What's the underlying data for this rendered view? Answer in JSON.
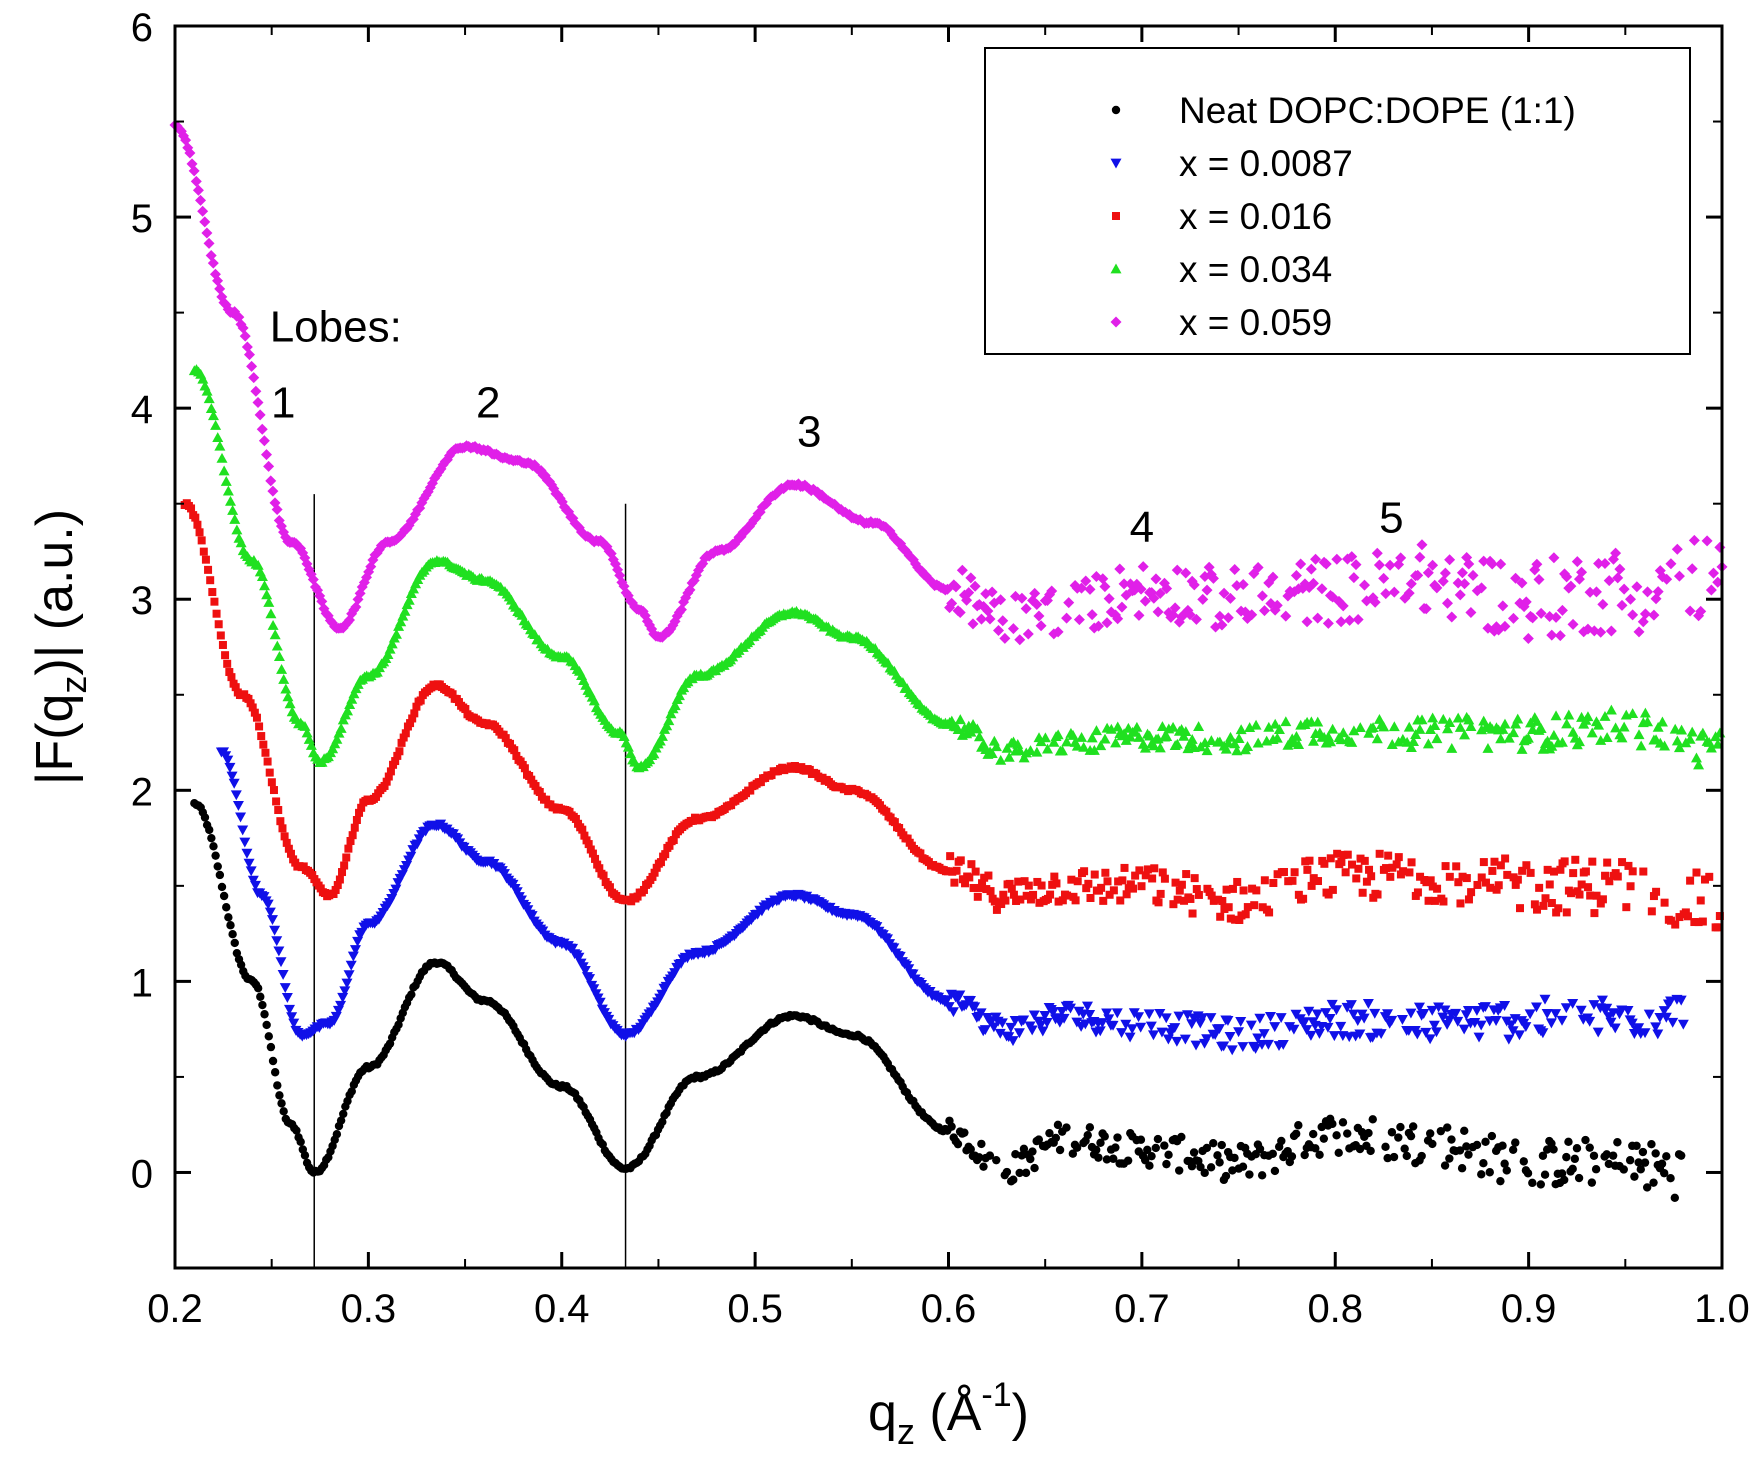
{
  "chart_data": {
    "type": "scatter",
    "title": "",
    "xlabel": "q_z (Å^-1)",
    "xlabel_parts": {
      "main": "q",
      "sub": "z",
      "open": " (Å",
      "sup": "-1",
      "close": ")"
    },
    "ylabel": "|F(q_z)| (a.u.)",
    "ylabel_parts": {
      "pre": "|F(q",
      "sub": "z",
      "post": ")| (a.u.)"
    },
    "xlim": [
      0.2,
      1.0
    ],
    "ylim": [
      -0.5,
      6
    ],
    "x_ticks": [
      0.2,
      0.3,
      0.4,
      0.5,
      0.6,
      0.7,
      0.8,
      0.9,
      1.0
    ],
    "x_tick_labels": [
      "0.2",
      "0.3",
      "0.4",
      "0.5",
      "0.6",
      "0.7",
      "0.8",
      "0.9",
      "1.0"
    ],
    "y_ticks": [
      0,
      1,
      2,
      3,
      4,
      5,
      6
    ],
    "y_tick_labels": [
      "0",
      "1",
      "2",
      "3",
      "4",
      "5",
      "6"
    ],
    "legend_position": "top-right",
    "vertical_lines": [
      0.272,
      0.433
    ],
    "annotations": [
      {
        "text": "Lobes:",
        "x": 0.25,
        "y": 4.35
      },
      {
        "text": "1",
        "x": 0.256,
        "y": 3.95
      },
      {
        "text": "2",
        "x": 0.362,
        "y": 3.95
      },
      {
        "text": "3",
        "x": 0.528,
        "y": 3.8
      },
      {
        "text": "4",
        "x": 0.7,
        "y": 3.3
      },
      {
        "text": "5",
        "x": 0.829,
        "y": 3.35
      }
    ],
    "series": [
      {
        "name": "Neat DOPC:DOPE (1:1)",
        "color": "#000000",
        "marker": "circle",
        "x_range": [
          0.21,
          0.98
        ],
        "offset": 0.0,
        "amp_scale": 1.0,
        "y_start": 1.93,
        "noise": 0.07,
        "points": [
          [
            0.21,
            1.93
          ],
          [
            0.24,
            1.0
          ],
          [
            0.26,
            0.25
          ],
          [
            0.272,
            0.0
          ],
          [
            0.3,
            0.55
          ],
          [
            0.335,
            1.1
          ],
          [
            0.36,
            0.9
          ],
          [
            0.4,
            0.45
          ],
          [
            0.433,
            0.02
          ],
          [
            0.47,
            0.5
          ],
          [
            0.52,
            0.82
          ],
          [
            0.55,
            0.72
          ],
          [
            0.6,
            0.22
          ],
          [
            0.63,
            0.02
          ],
          [
            0.66,
            0.18
          ],
          [
            0.7,
            0.12
          ],
          [
            0.75,
            0.05
          ],
          [
            0.8,
            0.2
          ],
          [
            0.85,
            0.15
          ],
          [
            0.9,
            0.05
          ],
          [
            0.95,
            0.05
          ],
          [
            0.98,
            0.0
          ]
        ]
      },
      {
        "name": "x = 0.0087",
        "color": "#1010e8",
        "marker": "triangle-down",
        "x_range": [
          0.224,
          0.98
        ],
        "offset": 0.72,
        "amp_scale": 1.0,
        "y_start": 2.2,
        "noise": 0.06,
        "points": [
          [
            0.224,
            2.2
          ],
          [
            0.245,
            1.45
          ],
          [
            0.265,
            0.72
          ],
          [
            0.28,
            0.78
          ],
          [
            0.3,
            1.3
          ],
          [
            0.335,
            1.82
          ],
          [
            0.36,
            1.63
          ],
          [
            0.4,
            1.2
          ],
          [
            0.433,
            0.72
          ],
          [
            0.47,
            1.15
          ],
          [
            0.52,
            1.45
          ],
          [
            0.55,
            1.35
          ],
          [
            0.6,
            0.9
          ],
          [
            0.63,
            0.75
          ],
          [
            0.66,
            0.82
          ],
          [
            0.7,
            0.78
          ],
          [
            0.75,
            0.72
          ],
          [
            0.8,
            0.8
          ],
          [
            0.85,
            0.78
          ],
          [
            0.9,
            0.8
          ],
          [
            0.95,
            0.82
          ],
          [
            0.98,
            0.82
          ]
        ]
      },
      {
        "name": "x = 0.016",
        "color": "#ee1010",
        "marker": "square",
        "x_range": [
          0.205,
          1.0
        ],
        "offset": 1.42,
        "amp_scale": 1.0,
        "y_start": 3.5,
        "noise": 0.08,
        "points": [
          [
            0.205,
            3.5
          ],
          [
            0.235,
            2.5
          ],
          [
            0.265,
            1.6
          ],
          [
            0.28,
            1.45
          ],
          [
            0.3,
            1.95
          ],
          [
            0.335,
            2.55
          ],
          [
            0.36,
            2.35
          ],
          [
            0.4,
            1.9
          ],
          [
            0.433,
            1.42
          ],
          [
            0.47,
            1.85
          ],
          [
            0.52,
            2.12
          ],
          [
            0.55,
            2.0
          ],
          [
            0.6,
            1.58
          ],
          [
            0.63,
            1.45
          ],
          [
            0.66,
            1.5
          ],
          [
            0.7,
            1.5
          ],
          [
            0.75,
            1.42
          ],
          [
            0.8,
            1.55
          ],
          [
            0.85,
            1.55
          ],
          [
            0.9,
            1.5
          ],
          [
            0.95,
            1.5
          ],
          [
            1.0,
            1.4
          ]
        ]
      },
      {
        "name": "x = 0.034",
        "color": "#20e020",
        "marker": "triangle-up",
        "x_range": [
          0.21,
          1.0
        ],
        "offset": 2.15,
        "amp_scale": 1.0,
        "y_start": 4.2,
        "noise": 0.05,
        "points": [
          [
            0.21,
            4.2
          ],
          [
            0.24,
            3.2
          ],
          [
            0.265,
            2.35
          ],
          [
            0.275,
            2.15
          ],
          [
            0.3,
            2.6
          ],
          [
            0.335,
            3.2
          ],
          [
            0.36,
            3.1
          ],
          [
            0.4,
            2.7
          ],
          [
            0.43,
            2.3
          ],
          [
            0.44,
            2.12
          ],
          [
            0.47,
            2.6
          ],
          [
            0.52,
            2.93
          ],
          [
            0.55,
            2.8
          ],
          [
            0.6,
            2.35
          ],
          [
            0.63,
            2.2
          ],
          [
            0.66,
            2.25
          ],
          [
            0.7,
            2.28
          ],
          [
            0.75,
            2.27
          ],
          [
            0.8,
            2.32
          ],
          [
            0.85,
            2.3
          ],
          [
            0.9,
            2.3
          ],
          [
            0.95,
            2.33
          ],
          [
            1.0,
            2.2
          ]
        ]
      },
      {
        "name": "x = 0.059",
        "color": "#e020e8",
        "marker": "diamond",
        "x_range": [
          0.2,
          1.0
        ],
        "offset": 2.95,
        "amp_scale": 1.0,
        "y_start": 5.48,
        "noise": 0.12,
        "points": [
          [
            0.2,
            5.48
          ],
          [
            0.23,
            4.5
          ],
          [
            0.26,
            3.3
          ],
          [
            0.285,
            2.85
          ],
          [
            0.31,
            3.3
          ],
          [
            0.35,
            3.8
          ],
          [
            0.38,
            3.72
          ],
          [
            0.42,
            3.3
          ],
          [
            0.44,
            2.95
          ],
          [
            0.45,
            2.8
          ],
          [
            0.48,
            3.25
          ],
          [
            0.52,
            3.6
          ],
          [
            0.56,
            3.4
          ],
          [
            0.6,
            3.05
          ],
          [
            0.63,
            2.9
          ],
          [
            0.66,
            2.95
          ],
          [
            0.7,
            3.05
          ],
          [
            0.75,
            3.0
          ],
          [
            0.8,
            3.05
          ],
          [
            0.85,
            3.1
          ],
          [
            0.9,
            3.0
          ],
          [
            0.95,
            3.05
          ],
          [
            1.0,
            3.1
          ]
        ]
      }
    ]
  }
}
